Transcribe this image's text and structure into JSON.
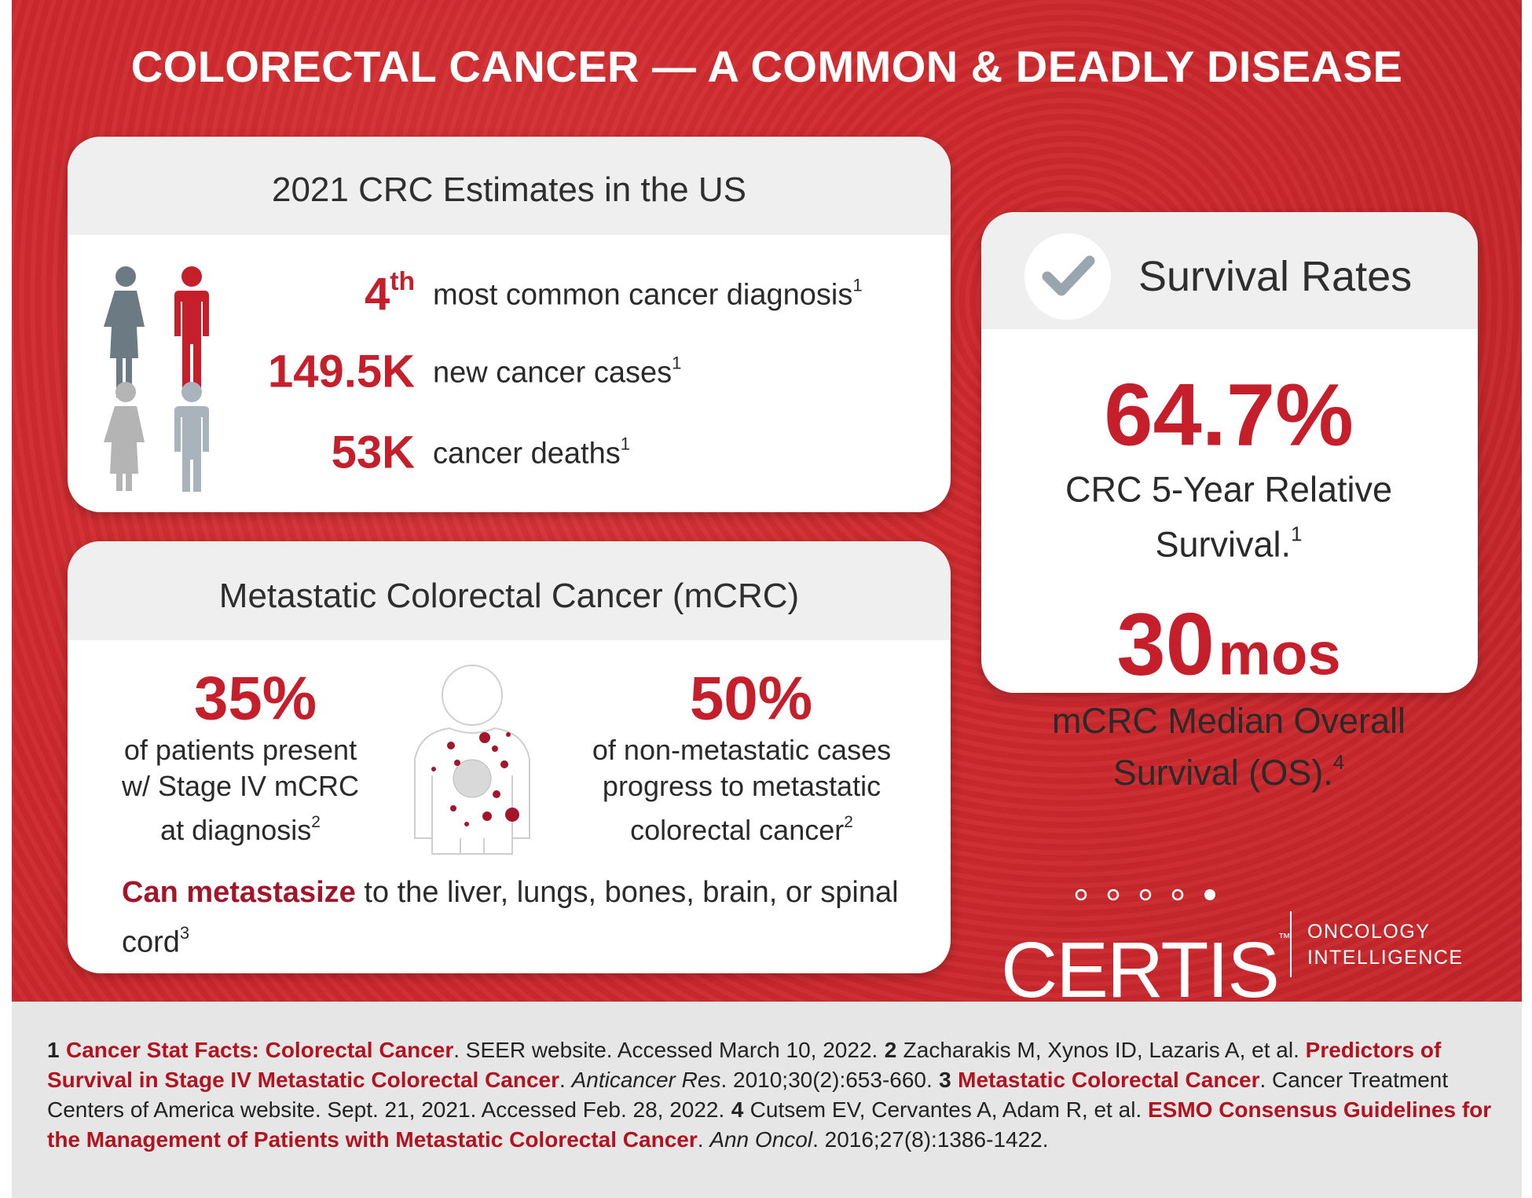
{
  "title": "COLORECTAL CANCER — A COMMON & DEADLY DISEASE",
  "estimates": {
    "heading": "2021 CRC Estimates in the US",
    "rows": [
      {
        "figure": "4",
        "figure_suffix": "th",
        "label": "most common cancer diagnosis",
        "ref": "1"
      },
      {
        "figure": "149.5K",
        "label": "new cancer cases",
        "ref": "1"
      },
      {
        "figure": "53K",
        "label": "cancer deaths",
        "ref": "1"
      }
    ]
  },
  "metastatic": {
    "heading": "Metastatic Colorectal Cancer (mCRC)",
    "stats": [
      {
        "figure": "35%",
        "lines": [
          "of patients present",
          "w/ Stage IV mCRC",
          "at diagnosis"
        ],
        "ref": "2"
      },
      {
        "figure": "50%",
        "lines": [
          "of non-metastatic cases",
          "progress to metastatic",
          "colorectal cancer"
        ],
        "ref": "2"
      }
    ],
    "note": {
      "highlight": "Can metastasize",
      "text": "to the liver, lungs, bones, brain, or spinal cord",
      "ref": "3"
    }
  },
  "survival": {
    "heading": "Survival Rates",
    "stats": [
      {
        "figure": "64.7%",
        "lines": [
          "CRC 5-Year Relative",
          "Survival."
        ],
        "ref": "1"
      },
      {
        "figure": "30",
        "unit": "mos",
        "lines": [
          "mCRC Median Overall",
          "Survival (OS)."
        ],
        "ref": "4"
      }
    ]
  },
  "logo": {
    "name": "CERTIS",
    "mark": "™",
    "tagline": [
      "ONCOLOGY",
      "INTELLIGENCE"
    ]
  },
  "references": [
    [
      {
        "kind": "number",
        "text": "1"
      },
      {
        "kind": "link",
        "text": "Cancer Stat Facts: Colorectal Cancer"
      },
      {
        "kind": "plain",
        "text": ". SEER website. Accessed March 10, 2022."
      }
    ],
    [
      {
        "kind": "number",
        "text": "2"
      },
      {
        "kind": "plain",
        "text": "Zacharakis M, Xynos ID, Lazaris A, et al. "
      },
      {
        "kind": "link",
        "text": "Predictors of Survival in Stage IV Metastatic Colorectal Cancer"
      },
      {
        "kind": "plain",
        "text": ". "
      },
      {
        "kind": "italic",
        "text": "Anticancer Res"
      },
      {
        "kind": "plain",
        "text": ". 2010;30(2):653-660."
      }
    ],
    [
      {
        "kind": "number",
        "text": "3"
      },
      {
        "kind": "link",
        "text": "Metastatic Colorectal Cancer"
      },
      {
        "kind": "plain",
        "text": ". Cancer Treatment Centers of America website. Sept. 21, 2021. Accessed Feb. 28, 2022."
      }
    ],
    [
      {
        "kind": "number",
        "text": "4"
      },
      {
        "kind": "plain",
        "text": "Cutsem EV, Cervantes A, Adam R, et al. "
      },
      {
        "kind": "link",
        "text": "ESMO Consensus Guidelines for the Management of Patients with Metastatic Colorectal Cancer"
      },
      {
        "kind": "plain",
        "text": ". "
      },
      {
        "kind": "italic",
        "text": "Ann Oncol"
      },
      {
        "kind": "plain",
        "text": ". 2016;27(8):1386-1422."
      }
    ]
  ]
}
